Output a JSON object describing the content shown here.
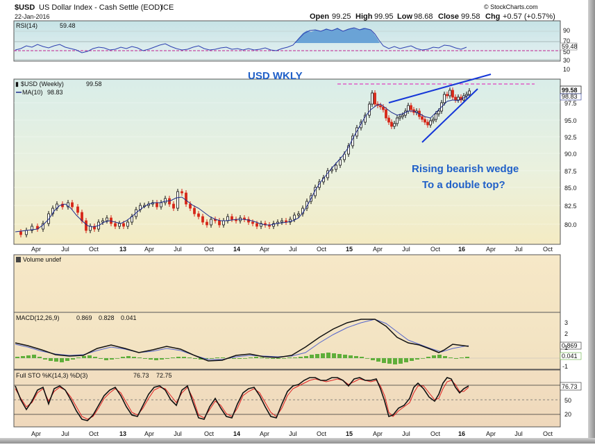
{
  "header": {
    "symbol": "$USD",
    "name": "US Dollar Index - Cash Settle (EOD)",
    "exchange": "ICE",
    "date": "22-Jan-2016",
    "open_label": "Open",
    "open": "99.25",
    "high_label": "High",
    "high": "99.95",
    "low_label": "Low",
    "low": "98.68",
    "close_label": "Close",
    "close": "99.58",
    "chg_label": "Chg",
    "chg": "+0.57 (+0.57%)",
    "watermark": "© StockCharts.com"
  },
  "rsi": {
    "label": "RSI(14)",
    "value": "59.48",
    "value_box": "59.48",
    "ticks": [
      "90",
      "70",
      "50",
      "30",
      "10"
    ]
  },
  "price": {
    "label": "$USD (Weekly)",
    "value": "99.58",
    "ma_label": "MA(10)",
    "ma_value": "98.83",
    "title_note": "USD WKLY",
    "annotation_line1": "Rising bearish wedge",
    "annotation_line2": "To a double top?",
    "last_box": "99.58",
    "ma_box": "98.83",
    "yticks": [
      "97.5",
      "95.0",
      "92.5",
      "90.0",
      "87.5",
      "85.0",
      "82.5",
      "80.0"
    ]
  },
  "volume": {
    "label": "Volume undef"
  },
  "macd": {
    "label": "MACD(12,26,9)",
    "v1": "0.869",
    "v2": "0.828",
    "v3": "0.041",
    "yticks": [
      "3",
      "2",
      "1",
      "-1"
    ],
    "box1": "0.869",
    "box2": "0.041"
  },
  "sto": {
    "label": "Full STO %K(14,3) %D(3)",
    "v1": "76.73",
    "v2": "72.75",
    "yticks": [
      "50",
      "20"
    ],
    "box": "76.73"
  },
  "x_axis": {
    "ticks": [
      "Apr",
      "Jul",
      "Oct",
      "13",
      "Apr",
      "Jul",
      "Oct",
      "14",
      "Apr",
      "Jul",
      "Oct",
      "15",
      "Apr",
      "Jul",
      "Oct",
      "16",
      "Apr",
      "Jul",
      "Oct"
    ],
    "bold_ticks": [
      "13",
      "14",
      "15",
      "16"
    ]
  },
  "colors": {
    "up": "#111111",
    "down": "#d62718",
    "ma": "#1c2a8c",
    "rsi_line": "#2c3fb0",
    "rsi_fill": "#6aa3d6",
    "rsi_ref": "#c02090",
    "wedge": "#1436d8",
    "dashed": "#e040c0",
    "hist": "#5fae3a",
    "sto_d": "#e02020"
  },
  "chart_data": [
    {
      "type": "line",
      "title": "",
      "ylabel": "RSI(14)",
      "ylim": [
        0,
        100
      ],
      "series": [
        {
          "name": "RSI(14)",
          "values": [
            42,
            50,
            58,
            55,
            46,
            40,
            45,
            52,
            48,
            44,
            50,
            55,
            48,
            45,
            50,
            56,
            60,
            52,
            46,
            50,
            53,
            47,
            50,
            56,
            62,
            72,
            80,
            84,
            78,
            82,
            74,
            60,
            52,
            50,
            55,
            52,
            48,
            54,
            60,
            58,
            55,
            59
          ]
        }
      ],
      "reference_lines": [
        70,
        30
      ]
    },
    {
      "type": "bar",
      "title": "$USD (Weekly)",
      "subtitle": "USD WKLY",
      "ylim": [
        77.5,
        100
      ],
      "x": [
        "2012-Apr",
        "2012-Jul",
        "2012-Oct",
        "2013",
        "2013-Apr",
        "2013-Jul",
        "2013-Oct",
        "2014",
        "2014-Apr",
        "2014-Jul",
        "2014-Oct",
        "2015",
        "2015-Apr",
        "2015-Jul",
        "2015-Oct",
        "2016"
      ],
      "series": [
        {
          "name": "$USD (Weekly)",
          "values": [
            79.6,
            83.0,
            79.7,
            79.7,
            82.6,
            83.5,
            80.2,
            81.1,
            79.8,
            80.8,
            85.6,
            92.5,
            97.2,
            96.4,
            97.2,
            99.6
          ]
        },
        {
          "name": "MA(10)",
          "values": [
            79.5,
            82.0,
            80.5,
            79.5,
            81.8,
            83.0,
            81.0,
            80.8,
            80.1,
            80.6,
            84.2,
            90.5,
            96.7,
            96.3,
            96.6,
            98.8
          ]
        }
      ],
      "annotations": [
        "Rising bearish wedge",
        "To a double top?"
      ]
    },
    {
      "type": "line",
      "title": "",
      "ylabel": "MACD(12,26,9)",
      "ylim": [
        -1.5,
        3.5
      ],
      "series": [
        {
          "name": "MACD",
          "values": [
            0.5,
            0.6,
            0.0,
            -0.3,
            0.5,
            0.4,
            -0.5,
            0.1,
            -0.3,
            0.1,
            0.9,
            2.0,
            3.1,
            1.6,
            0.4,
            0.87
          ]
        },
        {
          "name": "Signal",
          "values": [
            0.4,
            0.5,
            0.1,
            -0.2,
            0.3,
            0.4,
            -0.3,
            0.0,
            -0.2,
            0.0,
            0.6,
            1.7,
            2.8,
            1.9,
            0.7,
            0.83
          ]
        }
      ]
    },
    {
      "type": "line",
      "title": "",
      "ylabel": "Full STO %K(14,3) %D(3)",
      "ylim": [
        0,
        100
      ],
      "series": [
        {
          "name": "%K",
          "values": [
            30,
            90,
            15,
            35,
            80,
            90,
            20,
            40,
            35,
            80,
            90,
            95,
            10,
            80,
            20,
            76.73
          ]
        },
        {
          "name": "%D",
          "values": [
            32,
            85,
            18,
            38,
            78,
            85,
            22,
            42,
            38,
            78,
            88,
            92,
            14,
            78,
            25,
            72.75
          ]
        }
      ]
    }
  ]
}
